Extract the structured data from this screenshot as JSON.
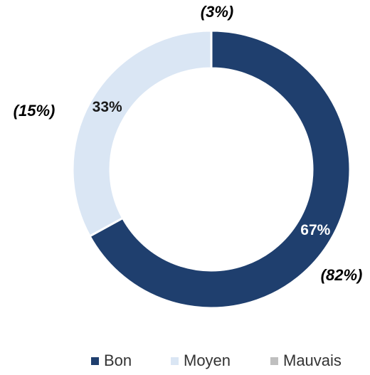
{
  "chart_data": {
    "type": "pie",
    "categories": [
      "Bon",
      "Moyen",
      "Mauvais"
    ],
    "values": [
      67,
      33,
      0
    ],
    "value_labels": [
      "67%",
      "33%",
      null
    ],
    "colors": [
      "#1f3f6e",
      "#dae6f4",
      "#bfbfbf"
    ],
    "annotations": [
      "(82%)",
      "(15%)",
      "(3%)"
    ],
    "legend": "bottom"
  }
}
